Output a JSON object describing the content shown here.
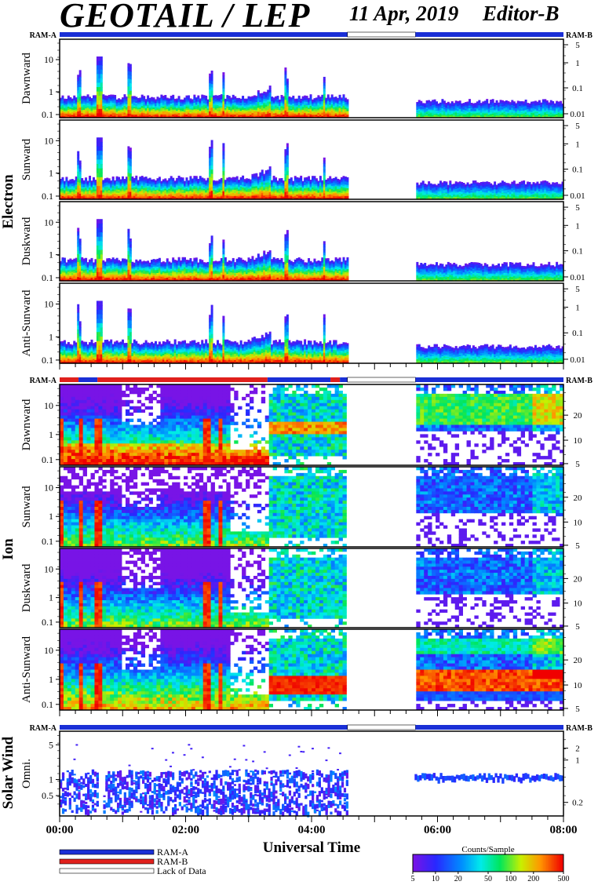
{
  "header": {
    "title": "GEOTAIL / LEP",
    "date": "11 Apr, 2019",
    "editor": "Editor-B"
  },
  "ram_labels": {
    "left": "RAM-A",
    "right": "RAM-B"
  },
  "groups": {
    "electron": "Electron",
    "ion": "Ion",
    "solar_wind": "Solar Wind"
  },
  "colors": {
    "ram_a": "#1a2fd6",
    "ram_b": "#e0201c",
    "lack_of_data": "#ffffff"
  },
  "chart_data": {
    "type": "heatmap",
    "xlabel": "Universal Time",
    "x_ticks": [
      "00:00",
      "02:00",
      "04:00",
      "06:00",
      "08:00"
    ],
    "x_range_hours": [
      0,
      8
    ],
    "data_gaps_hours": [
      [
        4.57,
        5.65
      ]
    ],
    "status_bars": [
      {
        "group": "electron",
        "segments": [
          {
            "from": 0,
            "to": 4.57,
            "mode": "RAM-A"
          },
          {
            "from": 4.57,
            "to": 5.65,
            "mode": "Lack of Data"
          },
          {
            "from": 5.65,
            "to": 8,
            "mode": "RAM-A"
          }
        ]
      },
      {
        "group": "ion",
        "segments": [
          {
            "from": 0,
            "to": 0.3,
            "mode": "RAM-B"
          },
          {
            "from": 0.3,
            "to": 0.6,
            "mode": "RAM-A"
          },
          {
            "from": 0.6,
            "to": 3.3,
            "mode": "RAM-B"
          },
          {
            "from": 3.3,
            "to": 4.3,
            "mode": "RAM-A"
          },
          {
            "from": 4.3,
            "to": 4.45,
            "mode": "RAM-B"
          },
          {
            "from": 4.45,
            "to": 4.57,
            "mode": "RAM-A"
          },
          {
            "from": 4.57,
            "to": 5.65,
            "mode": "Lack of Data"
          },
          {
            "from": 5.65,
            "to": 8,
            "mode": "RAM-A"
          }
        ]
      },
      {
        "group": "solar_wind",
        "segments": [
          {
            "from": 0,
            "to": 4.57,
            "mode": "RAM-A"
          },
          {
            "from": 4.57,
            "to": 5.65,
            "mode": "Lack of Data"
          },
          {
            "from": 5.65,
            "to": 8,
            "mode": "RAM-A"
          }
        ]
      }
    ],
    "panels": [
      {
        "group": "electron",
        "label": "Dawnward",
        "left_ticks": [
          "0.1",
          "1",
          "10"
        ],
        "right_ticks": [
          "0.01",
          "0.1",
          "1",
          "5"
        ]
      },
      {
        "group": "electron",
        "label": "Sunward",
        "left_ticks": [
          "0.1",
          "1",
          "10"
        ],
        "right_ticks": [
          "0.01",
          "0.1",
          "1",
          "5"
        ]
      },
      {
        "group": "electron",
        "label": "Duskward",
        "left_ticks": [
          "0.1",
          "1",
          "10"
        ],
        "right_ticks": [
          "0.01",
          "0.1",
          "1",
          "5"
        ]
      },
      {
        "group": "electron",
        "label": "Anti-Sunward",
        "left_ticks": [
          "0.1",
          "1",
          "10"
        ],
        "right_ticks": [
          "0.01",
          "0.1",
          "1",
          "5"
        ]
      },
      {
        "group": "ion",
        "label": "Dawnward",
        "left_ticks": [
          "0.1",
          "1",
          "10"
        ],
        "right_ticks": [
          "5",
          "10",
          "20"
        ]
      },
      {
        "group": "ion",
        "label": "Sunward",
        "left_ticks": [
          "0.1",
          "1",
          "10"
        ],
        "right_ticks": [
          "5",
          "10",
          "20"
        ]
      },
      {
        "group": "ion",
        "label": "Duskward",
        "left_ticks": [
          "0.1",
          "1",
          "10"
        ],
        "right_ticks": [
          "5",
          "10",
          "20"
        ]
      },
      {
        "group": "ion",
        "label": "Anti-Sunward",
        "left_ticks": [
          "0.1",
          "1",
          "10"
        ],
        "right_ticks": [
          "5",
          "10",
          "20"
        ]
      },
      {
        "group": "solar_wind",
        "label": "Omni.",
        "left_ticks": [
          "0.5",
          "1",
          "5"
        ],
        "right_ticks": [
          "0.2",
          "1",
          "2"
        ]
      }
    ],
    "colorbar": {
      "title": "Counts/Sample",
      "ticks": [
        "5",
        "10",
        "20",
        "50",
        "100",
        "200",
        "500"
      ],
      "range": [
        5,
        500
      ],
      "scale": "log"
    },
    "legend": [
      {
        "label": "RAM-A",
        "color": "#1a2fd6"
      },
      {
        "label": "RAM-B",
        "color": "#e0201c"
      },
      {
        "label": "Lack of Data",
        "color": "#ffffff"
      }
    ]
  }
}
